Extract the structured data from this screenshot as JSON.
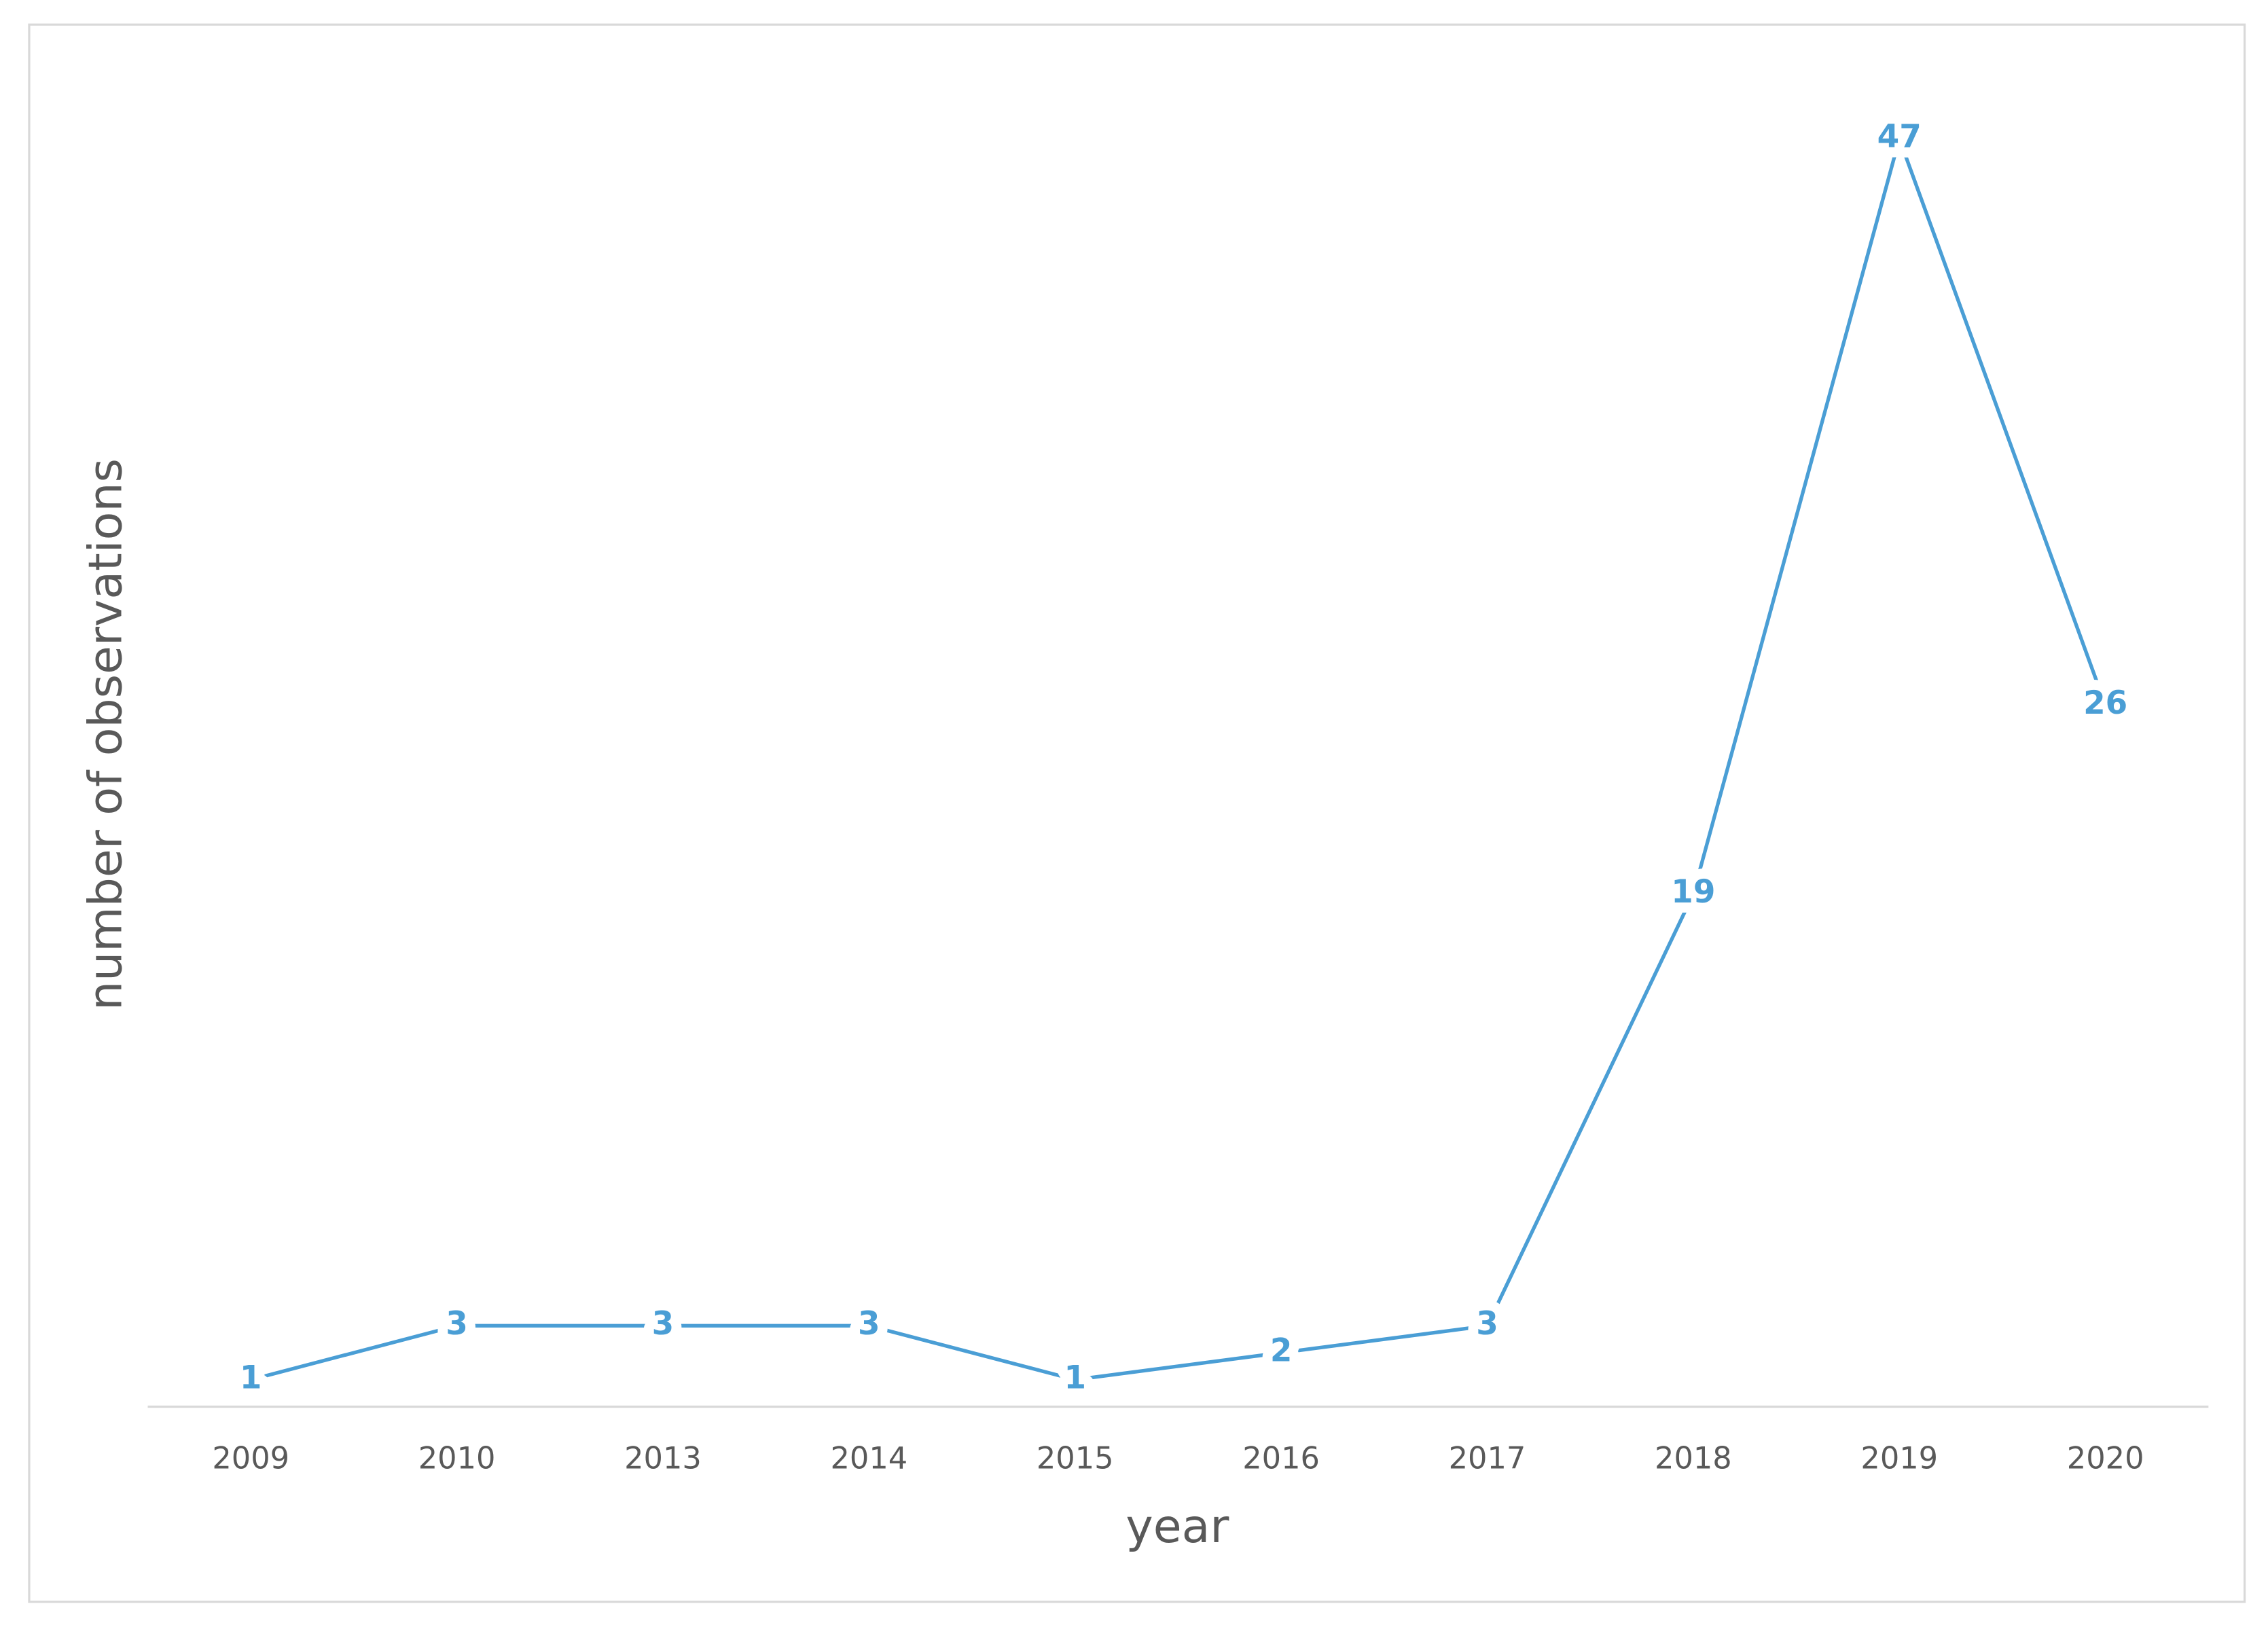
{
  "chart_data": {
    "type": "line",
    "x_label": "year",
    "y_label": "number of observations",
    "categories": [
      "2009",
      "2010",
      "2013",
      "2014",
      "2015",
      "2016",
      "2017",
      "2018",
      "2019",
      "2020"
    ],
    "values": [
      1,
      3,
      3,
      3,
      1,
      2,
      3,
      19,
      47,
      26
    ],
    "color": "#4a9ed5",
    "ylim": [
      0,
      50
    ]
  }
}
